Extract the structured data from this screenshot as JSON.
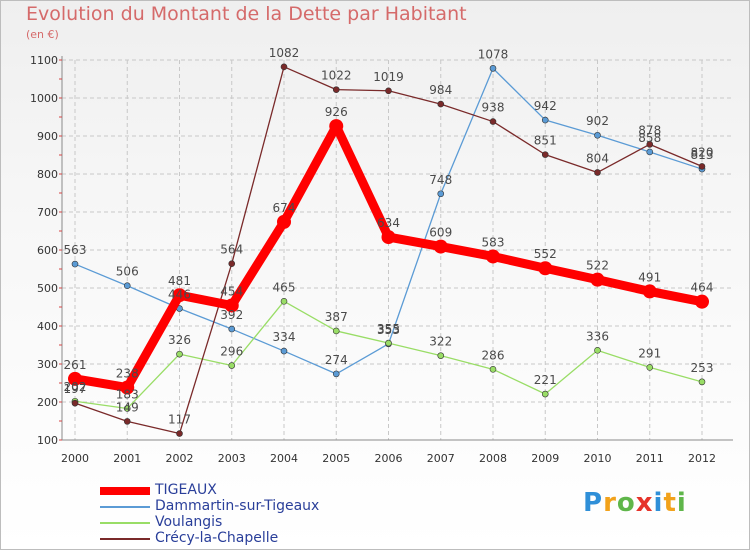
{
  "title": "Evolution du Montant de la Dette par Habitant",
  "unit": "(en €)",
  "brand": {
    "letters": [
      "P",
      "r",
      "o",
      "x",
      "i",
      "t",
      "i"
    ],
    "colors": [
      "#2f8fd8",
      "#f2a21b",
      "#5fb64a",
      "#e6332a",
      "#2f8fd8",
      "#f2a21b",
      "#5fb64a"
    ]
  },
  "chart_data": {
    "type": "line",
    "x": [
      "2000",
      "2001",
      "2002",
      "2003",
      "2004",
      "2005",
      "2006",
      "2007",
      "2008",
      "2009",
      "2010",
      "2011",
      "2012"
    ],
    "ylim": [
      100,
      1100
    ],
    "yticks": [
      "100",
      "200",
      "300",
      "400",
      "500",
      "600",
      "700",
      "800",
      "900",
      "1000",
      "1100"
    ],
    "grid": true,
    "legend_position": "bottom-left",
    "series": [
      {
        "name": "TIGEAUX",
        "color": "#ff0000",
        "values": [
          261,
          238,
          481,
          454,
          674,
          926,
          634,
          609,
          583,
          552,
          522,
          491,
          464
        ]
      },
      {
        "name": "Dammartin-sur-Tigeaux",
        "color": "#5b9bd5",
        "values": [
          563,
          506,
          446,
          392,
          334,
          274,
          353,
          748,
          1078,
          942,
          902,
          858,
          813
        ]
      },
      {
        "name": "Voulangis",
        "color": "#99dd66",
        "values": [
          202,
          183,
          326,
          296,
          465,
          387,
          355,
          322,
          286,
          221,
          336,
          291,
          253
        ]
      },
      {
        "name": "Crécy-la-Chapelle",
        "color": "#7a2a2a",
        "values": [
          197,
          149,
          117,
          564,
          1082,
          1022,
          1019,
          984,
          938,
          851,
          804,
          878,
          820
        ]
      }
    ]
  }
}
